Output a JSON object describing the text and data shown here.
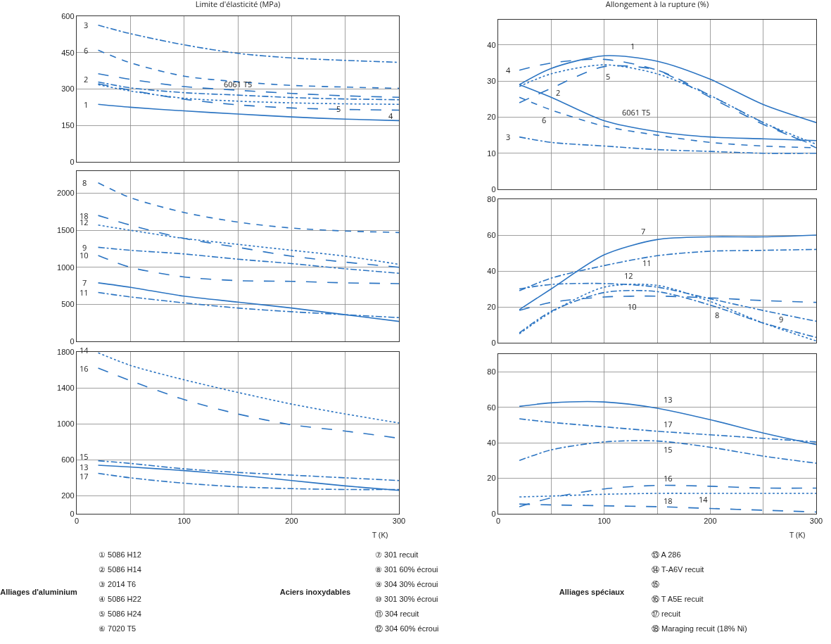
{
  "chart_data": [
    {
      "type": "line",
      "title": "Limite d'élasticité (MPa)",
      "x": [
        20,
        50,
        100,
        150,
        200,
        250,
        300
      ],
      "xlim": [
        0,
        300
      ],
      "xticks": [
        0,
        {
          "value": 50,
          "label": null
        },
        100,
        {
          "value": 150,
          "label": null
        },
        200,
        {
          "value": 250,
          "label": null
        },
        300
      ],
      "ylim": [
        0,
        600
      ],
      "yticks": [
        0,
        150,
        300,
        450,
        600
      ],
      "grid": true,
      "tick_labels": "y",
      "marker": "none",
      "series": [
        {
          "name": "3",
          "color": "#2b74c2",
          "line_style": "dashdot",
          "values": [
            563,
            528,
            482,
            447,
            428,
            418,
            410
          ]
        },
        {
          "name": "6",
          "color": "#2b74c2",
          "line_style": "dashed",
          "values": [
            460,
            408,
            353,
            330,
            315,
            308,
            303
          ]
        },
        {
          "name": "6061 T5",
          "color": "#2b74c2",
          "line_style": "longdash",
          "values": [
            363,
            340,
            310,
            295,
            282,
            272,
            266
          ]
        },
        {
          "name": "2",
          "color": "#2b74c2",
          "line_style": "dashdot",
          "values": [
            329,
            305,
            285,
            275,
            265,
            259,
            256
          ]
        },
        {
          "name": "5",
          "color": "#2b74c2",
          "line_style": "dotted",
          "values": [
            318,
            292,
            262,
            250,
            243,
            239,
            237
          ]
        },
        {
          "name": "4",
          "color": "#2b74c2",
          "line_style": "longdash",
          "values": [
            322,
            295,
            258,
            235,
            222,
            216,
            213
          ]
        },
        {
          "name": "1",
          "color": "#2b74c2",
          "line_style": "solid",
          "values": [
            237,
            225,
            210,
            197,
            185,
            176,
            170
          ]
        }
      ]
    },
    {
      "type": "line",
      "x": [
        20,
        50,
        100,
        150,
        200,
        250,
        300
      ],
      "xlim": [
        0,
        300
      ],
      "xticks": [
        0,
        {
          "value": 50,
          "label": null
        },
        100,
        {
          "value": 150,
          "label": null
        },
        200,
        {
          "value": 250,
          "label": null
        },
        300
      ],
      "ylim": [
        0,
        2300
      ],
      "yticks": [
        0,
        500,
        1000,
        1500,
        2000
      ],
      "grid": true,
      "tick_labels": "y",
      "marker": "none",
      "series": [
        {
          "name": "8",
          "color": "#2b74c2",
          "line_style": "dashed",
          "values": [
            2140,
            1940,
            1740,
            1610,
            1530,
            1490,
            1470
          ]
        },
        {
          "name": "18",
          "color": "#2b74c2",
          "line_style": "longdash",
          "values": [
            1700,
            1570,
            1390,
            1270,
            1150,
            1070,
            1000
          ]
        },
        {
          "name": "12",
          "color": "#2b74c2",
          "line_style": "dotted",
          "values": [
            1570,
            1500,
            1390,
            1310,
            1230,
            1150,
            1040
          ]
        },
        {
          "name": "9",
          "color": "#2b74c2",
          "line_style": "dashdot",
          "values": [
            1270,
            1230,
            1180,
            1110,
            1050,
            980,
            920
          ]
        },
        {
          "name": "10",
          "color": "#2b74c2",
          "line_style": "longdash",
          "values": [
            1160,
            1000,
            870,
            820,
            810,
            790,
            780
          ]
        },
        {
          "name": "7",
          "color": "#2b74c2",
          "line_style": "solid",
          "values": [
            790,
            730,
            610,
            530,
            450,
            360,
            270
          ]
        },
        {
          "name": "11",
          "color": "#2b74c2",
          "line_style": "dashdot",
          "values": [
            660,
            600,
            520,
            450,
            400,
            360,
            320
          ]
        }
      ]
    },
    {
      "type": "line",
      "xlabel": "T (K)",
      "x": [
        20,
        50,
        100,
        150,
        200,
        250,
        300
      ],
      "xlim": [
        0,
        300
      ],
      "xticks": [
        0,
        {
          "value": 50,
          "label": null
        },
        100,
        {
          "value": 150,
          "label": null
        },
        200,
        {
          "value": 250,
          "label": null
        },
        300
      ],
      "ylim": [
        0,
        1800
      ],
      "yticks": [
        0,
        200,
        600,
        1000,
        1400,
        1800
      ],
      "grid": true,
      "marker": "none",
      "series": [
        {
          "name": "14",
          "color": "#2b74c2",
          "line_style": "dotted",
          "values": [
            1790,
            1650,
            1490,
            1350,
            1220,
            1110,
            1010
          ]
        },
        {
          "name": "16",
          "color": "#2b74c2",
          "line_style": "longdash",
          "values": [
            1620,
            1480,
            1270,
            1110,
            990,
            920,
            840
          ]
        },
        {
          "name": "15",
          "color": "#2b74c2",
          "line_style": "dashdot",
          "values": [
            590,
            560,
            500,
            460,
            430,
            400,
            370
          ]
        },
        {
          "name": "13",
          "color": "#2b74c2",
          "line_style": "solid",
          "values": [
            540,
            520,
            480,
            430,
            370,
            310,
            260
          ]
        },
        {
          "name": "17",
          "color": "#2b74c2",
          "line_style": "dashdot",
          "values": [
            450,
            400,
            340,
            300,
            280,
            270,
            270
          ]
        }
      ]
    },
    {
      "type": "line",
      "title": "Allongement à la rupture (%)",
      "x": [
        20,
        50,
        100,
        150,
        200,
        250,
        300
      ],
      "xlim": [
        0,
        300
      ],
      "xticks": [
        0,
        {
          "value": 50,
          "label": null
        },
        100,
        {
          "value": 150,
          "label": null
        },
        200,
        {
          "value": 250,
          "label": null
        },
        300
      ],
      "ylim": [
        0,
        47
      ],
      "yticks": [
        0,
        10,
        20,
        30,
        40
      ],
      "grid": true,
      "tick_labels": "y",
      "marker": "none",
      "series": [
        {
          "name": "1",
          "color": "#2b74c2",
          "line_style": "solid",
          "values": [
            29,
            33.5,
            37,
            35.5,
            30.5,
            23.5,
            18.5
          ]
        },
        {
          "name": "4",
          "color": "#2b74c2",
          "line_style": "longdash",
          "values": [
            33,
            35,
            36,
            33,
            25.5,
            18,
            12
          ]
        },
        {
          "name": "5",
          "color": "#2b74c2",
          "line_style": "dotted",
          "values": [
            28.5,
            32,
            34.5,
            32,
            26,
            18.5,
            12.5
          ]
        },
        {
          "name": "2",
          "color": "#2b74c2",
          "line_style": "longdash",
          "values": [
            24,
            28,
            34,
            33,
            26,
            18.5,
            11.5
          ]
        },
        {
          "name": "6061 T5",
          "color": "#2b74c2",
          "line_style": "solid",
          "values": [
            29,
            25.5,
            19,
            16,
            14.5,
            14,
            13.5
          ]
        },
        {
          "name": "6",
          "color": "#2b74c2",
          "line_style": "dashed",
          "values": [
            25.5,
            22,
            17.5,
            15,
            13,
            12,
            11.5
          ]
        },
        {
          "name": "3",
          "color": "#2b74c2",
          "line_style": "dashdot",
          "values": [
            14.5,
            13,
            12,
            11,
            10.5,
            10,
            10
          ]
        }
      ]
    },
    {
      "type": "line",
      "x": [
        20,
        50,
        100,
        150,
        200,
        250,
        300
      ],
      "xlim": [
        0,
        300
      ],
      "xticks": [
        0,
        {
          "value": 50,
          "label": null
        },
        100,
        {
          "value": 150,
          "label": null
        },
        200,
        {
          "value": 250,
          "label": null
        },
        300
      ],
      "ylim": [
        0,
        80
      ],
      "yticks": [
        0,
        20,
        40,
        60,
        80
      ],
      "grid": true,
      "tick_labels": "y",
      "marker": "none",
      "series": [
        {
          "name": "7",
          "color": "#2b74c2",
          "line_style": "solid",
          "values": [
            18.5,
            30,
            49,
            57.5,
            59,
            59,
            60
          ]
        },
        {
          "name": "11",
          "color": "#2b74c2",
          "line_style": "dashdot",
          "values": [
            29,
            36,
            43,
            48.5,
            51,
            51.5,
            52
          ]
        },
        {
          "name": "9",
          "color": "#2b74c2",
          "line_style": "dashdot",
          "values": [
            30,
            32.5,
            33,
            31,
            24.5,
            18,
            12
          ]
        },
        {
          "name": "12",
          "color": "#2b74c2",
          "line_style": "dotted",
          "values": [
            5,
            17,
            31,
            32,
            23,
            11,
            1
          ]
        },
        {
          "name": "8",
          "color": "#2b74c2",
          "line_style": "dashdot",
          "values": [
            5.5,
            17.5,
            28,
            28.5,
            21,
            11,
            3
          ]
        },
        {
          "name": "10",
          "color": "#2b74c2",
          "line_style": "longdash",
          "values": [
            18,
            22.5,
            25.5,
            26,
            25,
            23.5,
            22.5
          ]
        }
      ]
    },
    {
      "type": "line",
      "xlabel": "T (K)",
      "x": [
        20,
        50,
        100,
        150,
        200,
        250,
        300
      ],
      "xlim": [
        0,
        300
      ],
      "xticks": [
        0,
        {
          "value": 50,
          "label": null
        },
        100,
        {
          "value": 150,
          "label": null
        },
        200,
        {
          "value": 250,
          "label": null
        },
        300
      ],
      "ylim": [
        0,
        90
      ],
      "yticks": [
        0,
        20,
        40,
        60,
        80
      ],
      "grid": true,
      "marker": "none",
      "series": [
        {
          "name": "13",
          "color": "#2b74c2",
          "line_style": "solid",
          "values": [
            60.5,
            62.5,
            63,
            59.5,
            53,
            45.5,
            39
          ]
        },
        {
          "name": "17",
          "color": "#2b74c2",
          "line_style": "dashdot",
          "values": [
            53.5,
            51.5,
            49,
            46.5,
            44.5,
            42.5,
            40.5
          ]
        },
        {
          "name": "15",
          "color": "#2b74c2",
          "line_style": "dashdot",
          "values": [
            30,
            36,
            40.5,
            41,
            37.5,
            32.5,
            28.5
          ]
        },
        {
          "name": "16",
          "color": "#2b74c2",
          "line_style": "longdash",
          "values": [
            4,
            9,
            14,
            16,
            15.5,
            14.5,
            14.5
          ]
        },
        {
          "name": "14",
          "color": "#2b74c2",
          "line_style": "dotted",
          "values": [
            9.5,
            10,
            11,
            11.5,
            11.5,
            11.5,
            11.5
          ]
        },
        {
          "name": "18",
          "color": "#2b74c2",
          "line_style": "longdash",
          "values": [
            5.5,
            5,
            4.5,
            4,
            3,
            2,
            1
          ]
        }
      ]
    },
    {
      "type": "other",
      "annotations": [
        "Alliages d'aluminium",
        "① 5086 H12",
        "② 5086 H14",
        "③ 2014 T6",
        "④ 5086 H22",
        "⑤ 5086 H24",
        "⑥ 7020 T5",
        "Aciers inoxydables",
        "⑦ 301 recuit",
        "⑧ 301 60% écroui",
        "⑨ 304 30% écroui",
        "⑩ 301 30% écroui",
        "⑪ 304 recuit",
        "⑫ 304 60% écroui",
        "Alliages spéciaux",
        "⑬ A 286",
        "⑭ T-A6V recuit",
        "⑮",
        "⑯ T A5E recuit",
        "⑰ recuit",
        "⑱ Maraging recuit (18% Ni)"
      ]
    }
  ]
}
